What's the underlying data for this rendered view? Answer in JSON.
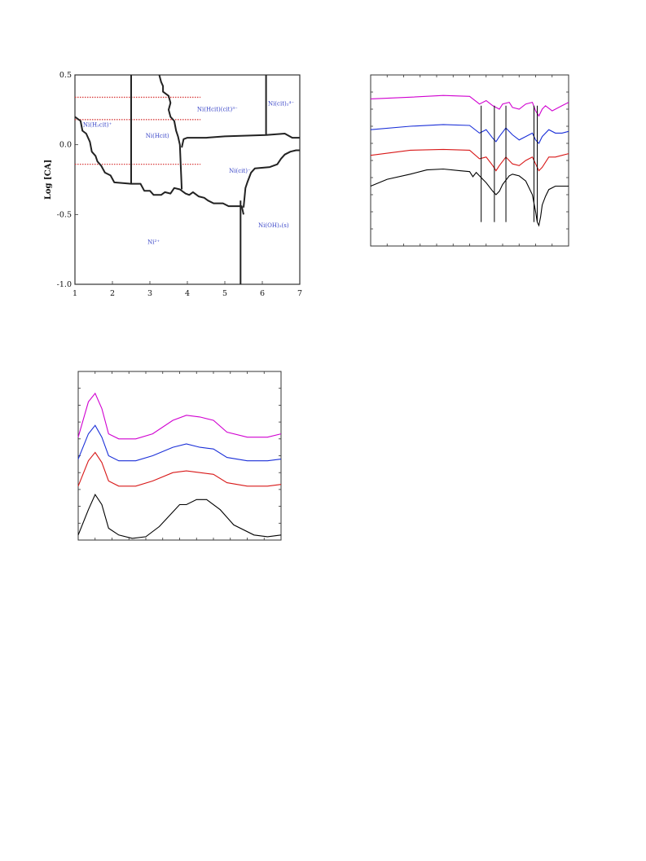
{
  "chart_data": [
    {
      "type": "diagram",
      "ylabel": "Log [CA]",
      "xlim": [
        1,
        7
      ],
      "ylim": [
        -1.0,
        0.5
      ],
      "x_ticks": [
        "1",
        "2",
        "3",
        "4",
        "5",
        "6",
        "7"
      ],
      "y_ticks": [
        "0.5",
        "0.0",
        "-0.5",
        "-1.0"
      ],
      "region_color": "#3a46c8",
      "boundary_color": "#222222",
      "guide_color": "#d94040",
      "regions": [
        {
          "label": "Ni(H₂cit)⁺",
          "x": 1.6,
          "y": 0.13
        },
        {
          "label": "Ni(Hcit)",
          "x": 3.2,
          "y": 0.05
        },
        {
          "label": "Ni(Hcit)(cit)³⁻",
          "x": 4.8,
          "y": 0.24
        },
        {
          "label": "Ni(cit)₂⁴⁻",
          "x": 6.5,
          "y": 0.28
        },
        {
          "label": "Ni(cit)⁻",
          "x": 5.4,
          "y": -0.2
        },
        {
          "label": "Ni(OH)₂(s)",
          "x": 6.3,
          "y": -0.59
        },
        {
          "label": "Ni²⁺",
          "x": 3.1,
          "y": -0.71
        }
      ],
      "guide_levels": [
        0.34,
        0.18,
        -0.14
      ],
      "guide_xrange": [
        1,
        4.35
      ],
      "boundaries": [
        [
          [
            1,
            0.2
          ],
          [
            1.15,
            0.17
          ],
          [
            1.2,
            0.1
          ],
          [
            1.3,
            0.08
          ],
          [
            1.4,
            0.02
          ],
          [
            1.45,
            -0.05
          ],
          [
            1.55,
            -0.08
          ],
          [
            1.6,
            -0.12
          ],
          [
            1.7,
            -0.15
          ],
          [
            1.8,
            -0.2
          ],
          [
            1.95,
            -0.22
          ],
          [
            2.05,
            -0.27
          ],
          [
            2.5,
            -0.28
          ],
          [
            2.75,
            -0.28
          ],
          [
            2.85,
            -0.33
          ],
          [
            3.0,
            -0.33
          ],
          [
            3.1,
            -0.36
          ],
          [
            3.3,
            -0.36
          ],
          [
            3.4,
            -0.34
          ],
          [
            3.55,
            -0.35
          ],
          [
            3.65,
            -0.31
          ],
          [
            3.8,
            -0.32
          ],
          [
            3.95,
            -0.35
          ],
          [
            4.05,
            -0.36
          ],
          [
            4.15,
            -0.34
          ],
          [
            4.3,
            -0.37
          ],
          [
            4.45,
            -0.38
          ],
          [
            4.55,
            -0.4
          ],
          [
            4.7,
            -0.42
          ],
          [
            4.95,
            -0.42
          ],
          [
            5.1,
            -0.44
          ],
          [
            5.45,
            -0.44
          ],
          [
            5.5,
            -0.5
          ]
        ],
        [
          [
            2.5,
            0.5
          ],
          [
            2.5,
            -0.28
          ]
        ],
        [
          [
            3.25,
            0.5
          ],
          [
            3.3,
            0.45
          ],
          [
            3.35,
            0.42
          ],
          [
            3.35,
            0.38
          ],
          [
            3.5,
            0.35
          ],
          [
            3.55,
            0.3
          ],
          [
            3.5,
            0.25
          ],
          [
            3.55,
            0.2
          ],
          [
            3.65,
            0.17
          ],
          [
            3.7,
            0.1
          ],
          [
            3.75,
            0.06
          ],
          [
            3.8,
            0.0
          ],
          [
            3.85,
            -0.32
          ]
        ],
        [
          [
            3.85,
            -0.02
          ],
          [
            3.9,
            0.04
          ],
          [
            4.0,
            0.05
          ],
          [
            4.3,
            0.05
          ],
          [
            4.5,
            0.05
          ],
          [
            5.0,
            0.06
          ],
          [
            6.1,
            0.07
          ],
          [
            6.6,
            0.08
          ],
          [
            6.8,
            0.05
          ],
          [
            7,
            0.05
          ]
        ],
        [
          [
            6.1,
            0.5
          ],
          [
            6.1,
            0.07
          ]
        ],
        [
          [
            5.42,
            -1.0
          ],
          [
            5.42,
            -0.4
          ]
        ],
        [
          [
            5.5,
            -0.45
          ],
          [
            5.55,
            -0.31
          ],
          [
            5.6,
            -0.27
          ],
          [
            5.7,
            -0.2
          ],
          [
            5.8,
            -0.17
          ],
          [
            6.2,
            -0.16
          ],
          [
            6.4,
            -0.14
          ],
          [
            6.5,
            -0.1
          ],
          [
            6.6,
            -0.07
          ],
          [
            6.75,
            -0.05
          ],
          [
            6.9,
            -0.04
          ],
          [
            7,
            -0.04
          ]
        ]
      ]
    },
    {
      "type": "line",
      "xlim": [
        0,
        60
      ],
      "ylim": [
        0,
        100
      ],
      "series": [
        {
          "color": "#d000d0",
          "values": [
            [
              0,
              86
            ],
            [
              12,
              87
            ],
            [
              22,
              88
            ],
            [
              30,
              87.5
            ],
            [
              33,
              83
            ],
            [
              35,
              85
            ],
            [
              37,
              82
            ],
            [
              39,
              80
            ],
            [
              40,
              83
            ],
            [
              42,
              84
            ],
            [
              43,
              81
            ],
            [
              45,
              80
            ],
            [
              47,
              83
            ],
            [
              49,
              84
            ],
            [
              50,
              79
            ],
            [
              51,
              76
            ],
            [
              52,
              80
            ],
            [
              53,
              82
            ],
            [
              55,
              79
            ],
            [
              58,
              82
            ],
            [
              60,
              84
            ]
          ]
        },
        {
          "color": "#1a2fd8",
          "values": [
            [
              0,
              68
            ],
            [
              12,
              70
            ],
            [
              22,
              71
            ],
            [
              30,
              70.5
            ],
            [
              33,
              66
            ],
            [
              35,
              68
            ],
            [
              37,
              63
            ],
            [
              38,
              61
            ],
            [
              39,
              64
            ],
            [
              41,
              69
            ],
            [
              43,
              65
            ],
            [
              45,
              62
            ],
            [
              47,
              64
            ],
            [
              49,
              66
            ],
            [
              50,
              62
            ],
            [
              51,
              60
            ],
            [
              52,
              64
            ],
            [
              54,
              68
            ],
            [
              56,
              66
            ],
            [
              58,
              66
            ],
            [
              60,
              67
            ]
          ]
        },
        {
          "color": "#d81818",
          "values": [
            [
              0,
              53
            ],
            [
              12,
              56
            ],
            [
              22,
              56.5
            ],
            [
              30,
              56
            ],
            [
              33,
              51
            ],
            [
              35,
              52
            ],
            [
              37,
              47
            ],
            [
              38,
              44
            ],
            [
              39,
              47
            ],
            [
              41,
              52
            ],
            [
              43,
              48
            ],
            [
              45,
              47
            ],
            [
              47,
              50
            ],
            [
              49,
              52
            ],
            [
              50,
              48
            ],
            [
              51,
              44
            ],
            [
              52,
              46
            ],
            [
              54,
              52
            ],
            [
              56,
              52
            ],
            [
              58,
              53
            ],
            [
              60,
              54
            ]
          ]
        },
        {
          "color": "#000000",
          "values": [
            [
              0,
              35
            ],
            [
              5,
              39
            ],
            [
              12,
              42
            ],
            [
              17,
              44.5
            ],
            [
              22,
              45
            ],
            [
              27,
              44
            ],
            [
              30,
              43.5
            ],
            [
              31,
              40.5
            ],
            [
              32,
              43
            ],
            [
              33,
              41
            ],
            [
              35,
              37
            ],
            [
              37,
              32
            ],
            [
              38,
              30
            ],
            [
              39,
              32
            ],
            [
              40,
              36
            ],
            [
              42,
              41
            ],
            [
              43,
              42
            ],
            [
              45,
              41
            ],
            [
              47,
              38
            ],
            [
              49,
              30
            ],
            [
              50,
              20
            ],
            [
              50.5,
              14
            ],
            [
              51,
              12
            ],
            [
              51.5,
              17
            ],
            [
              52,
              24
            ],
            [
              53,
              29
            ],
            [
              54,
              33
            ],
            [
              56,
              35
            ],
            [
              58,
              35
            ],
            [
              60,
              35
            ]
          ]
        }
      ],
      "markers_x": [
        33.5,
        37.5,
        41,
        49.5,
        50.5
      ]
    },
    {
      "type": "line",
      "xlim": [
        0,
        60
      ],
      "ylim": [
        0,
        100
      ],
      "series": [
        {
          "color": "#d000d0",
          "values": [
            [
              0,
              61
            ],
            [
              3,
              82
            ],
            [
              5,
              87
            ],
            [
              7,
              78
            ],
            [
              9,
              63
            ],
            [
              12,
              60
            ],
            [
              17,
              60
            ],
            [
              22,
              63
            ],
            [
              28,
              71
            ],
            [
              32,
              74
            ],
            [
              36,
              73
            ],
            [
              40,
              71
            ],
            [
              44,
              64
            ],
            [
              50,
              61
            ],
            [
              56,
              61
            ],
            [
              60,
              63
            ]
          ]
        },
        {
          "color": "#1a2fd8",
          "values": [
            [
              0,
              48
            ],
            [
              3,
              63
            ],
            [
              5,
              68
            ],
            [
              7,
              61
            ],
            [
              9,
              50
            ],
            [
              12,
              47
            ],
            [
              17,
              47
            ],
            [
              22,
              50
            ],
            [
              28,
              55
            ],
            [
              32,
              57
            ],
            [
              36,
              55
            ],
            [
              40,
              54
            ],
            [
              44,
              49
            ],
            [
              50,
              47
            ],
            [
              56,
              47
            ],
            [
              60,
              48
            ]
          ]
        },
        {
          "color": "#d81818",
          "values": [
            [
              0,
              32
            ],
            [
              3,
              47
            ],
            [
              5,
              52
            ],
            [
              7,
              46
            ],
            [
              9,
              35
            ],
            [
              12,
              32
            ],
            [
              17,
              32
            ],
            [
              22,
              35
            ],
            [
              28,
              40
            ],
            [
              32,
              41
            ],
            [
              36,
              40
            ],
            [
              40,
              39
            ],
            [
              44,
              34
            ],
            [
              50,
              32
            ],
            [
              56,
              32
            ],
            [
              60,
              33
            ]
          ]
        },
        {
          "color": "#000000",
          "values": [
            [
              0,
              3
            ],
            [
              3,
              18
            ],
            [
              5,
              27
            ],
            [
              7,
              21
            ],
            [
              9,
              7
            ],
            [
              12,
              3
            ],
            [
              16,
              1
            ],
            [
              20,
              2
            ],
            [
              24,
              8
            ],
            [
              30,
              21
            ],
            [
              32,
              21
            ],
            [
              35,
              24
            ],
            [
              38,
              24
            ],
            [
              42,
              18
            ],
            [
              46,
              9
            ],
            [
              52,
              3
            ],
            [
              56,
              2
            ],
            [
              60,
              3
            ]
          ]
        }
      ]
    }
  ]
}
